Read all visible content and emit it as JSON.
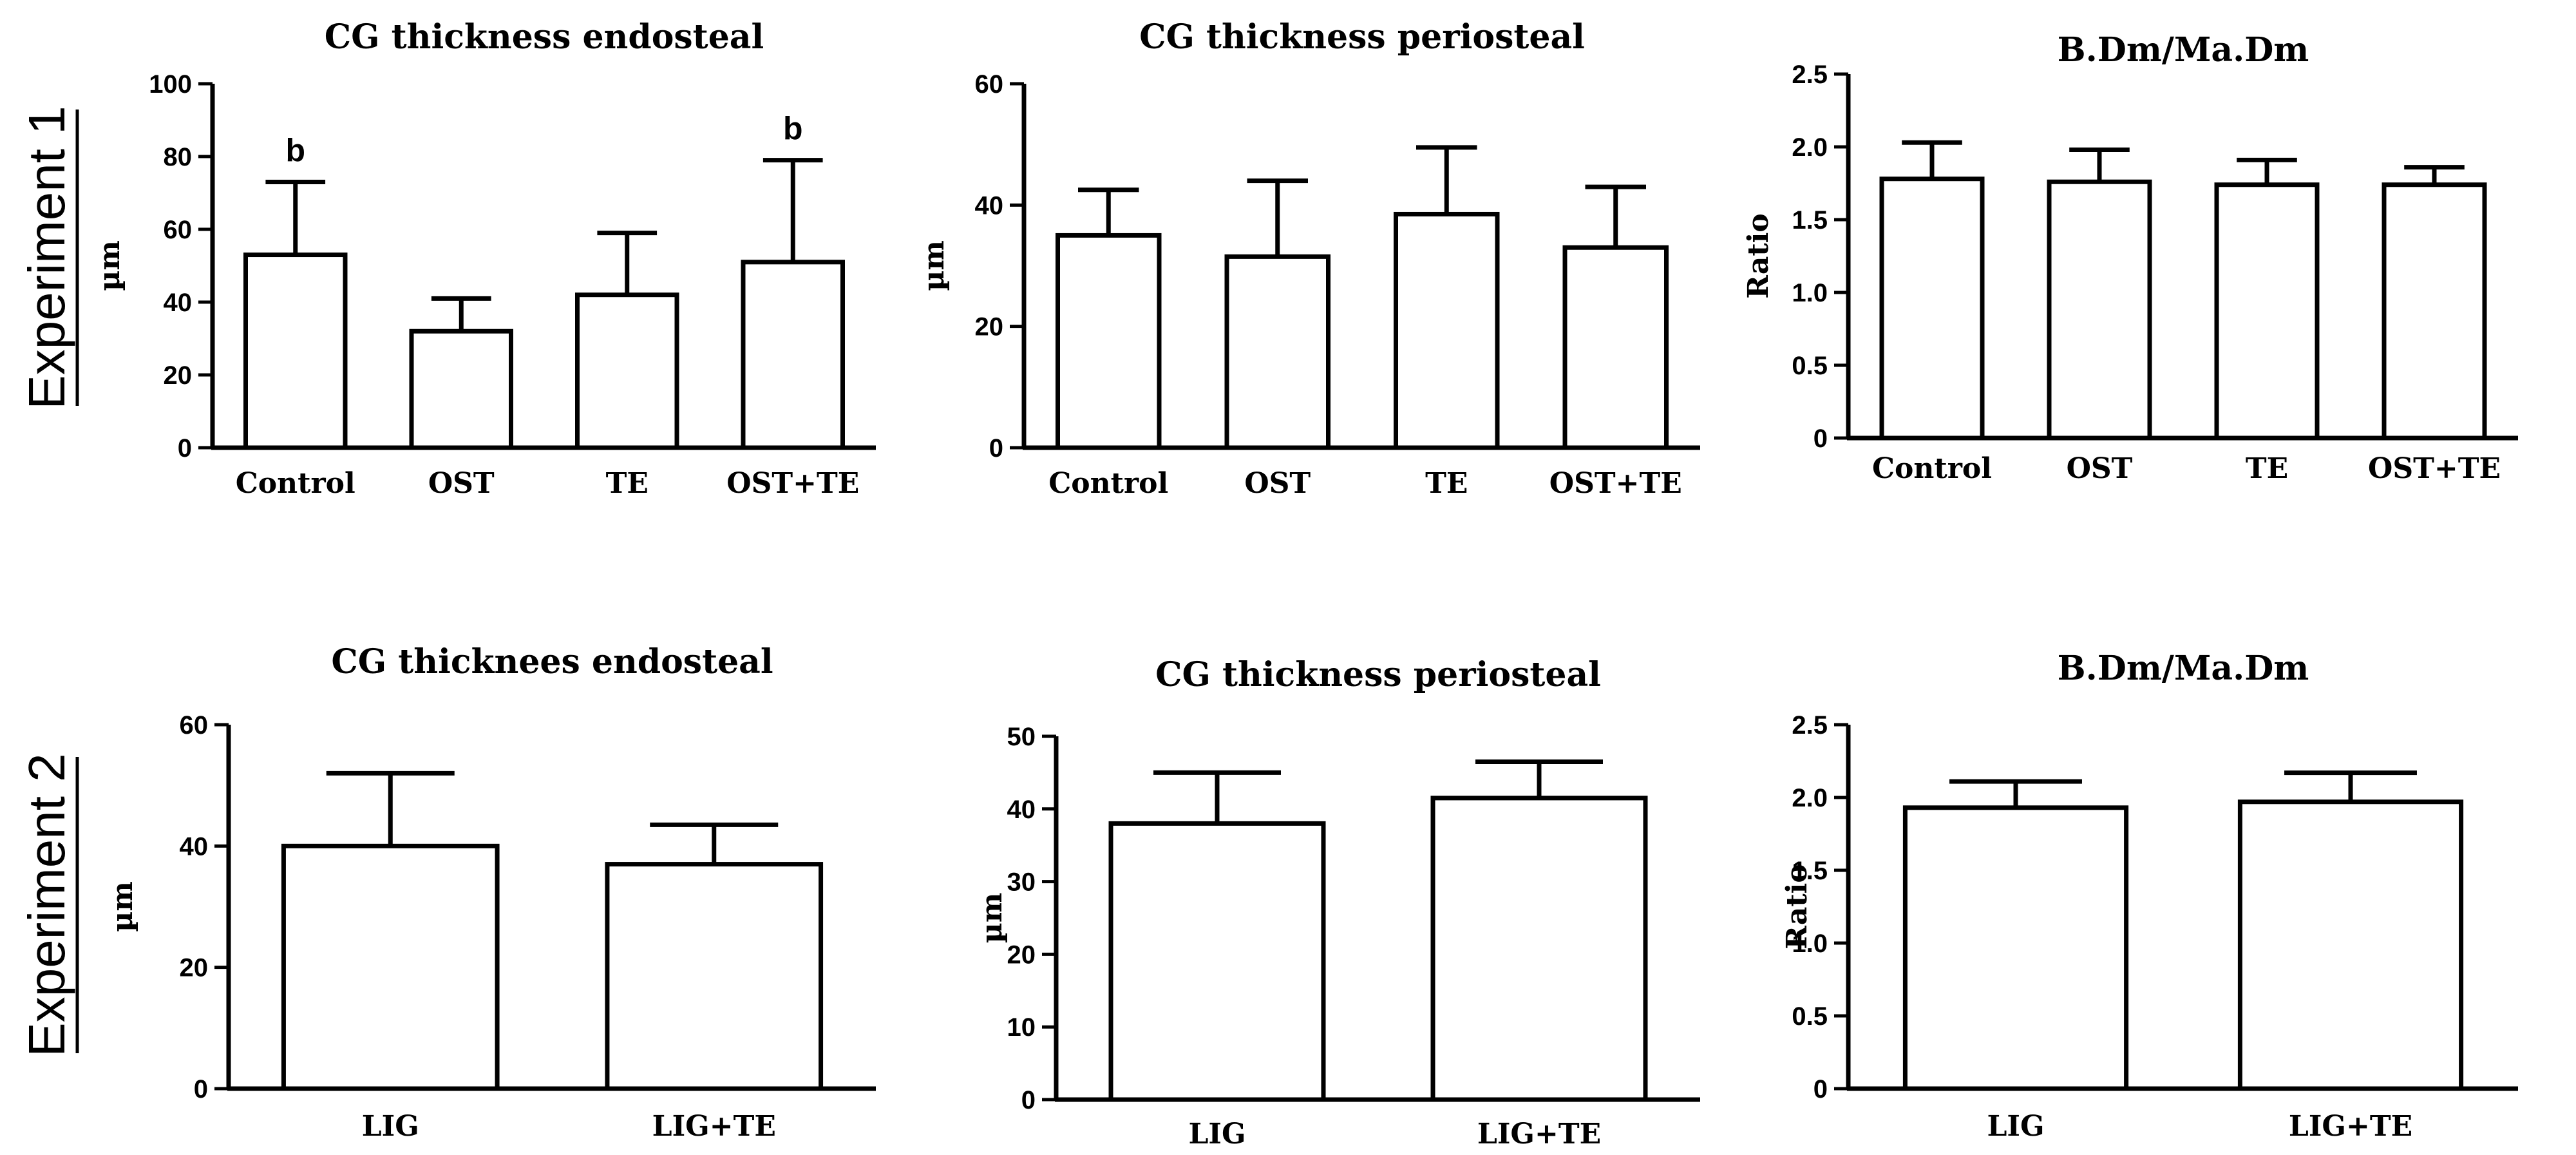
{
  "rows": [
    {
      "label": "Experiment 1"
    },
    {
      "label": "Experiment 2"
    }
  ],
  "chart_data": [
    {
      "type": "bar",
      "title": "CG thickness endosteal",
      "ylabel": "µm",
      "xlabel": "",
      "categories": [
        "Control",
        "OST",
        "TE",
        "OST+TE"
      ],
      "values": [
        53,
        32,
        42,
        51
      ],
      "errors": [
        20,
        9,
        17,
        28
      ],
      "annotations": [
        "b",
        "",
        "",
        "b"
      ],
      "ylim": [
        0,
        100
      ],
      "yticks": [
        "0",
        "20",
        "40",
        "60",
        "80",
        "100"
      ]
    },
    {
      "type": "bar",
      "title": "CG thickness periosteal",
      "ylabel": "µm",
      "xlabel": "",
      "categories": [
        "Control",
        "OST",
        "TE",
        "OST+TE"
      ],
      "values": [
        35,
        31.5,
        38.5,
        33
      ],
      "errors": [
        7.5,
        12.5,
        11,
        10
      ],
      "annotations": [
        "",
        "",
        "",
        ""
      ],
      "ylim": [
        0,
        60
      ],
      "yticks": [
        "0",
        "20",
        "40",
        "60"
      ]
    },
    {
      "type": "bar",
      "title": "B.Dm/Ma.Dm",
      "ylabel": "Ratio",
      "xlabel": "",
      "categories": [
        "Control",
        "OST",
        "TE",
        "OST+TE"
      ],
      "values": [
        1.78,
        1.76,
        1.74,
        1.74
      ],
      "errors": [
        0.25,
        0.22,
        0.17,
        0.12
      ],
      "annotations": [
        "",
        "",
        "",
        ""
      ],
      "ylim": [
        0,
        2.5
      ],
      "yticks": [
        "0",
        "0.5",
        "1.0",
        "1.5",
        "2.0",
        "2.5"
      ]
    },
    {
      "type": "bar",
      "title": "CG thicknees endosteal",
      "ylabel": "µm",
      "xlabel": "",
      "categories": [
        "LIG",
        "LIG+TE"
      ],
      "values": [
        40,
        37
      ],
      "errors": [
        12,
        6.5
      ],
      "annotations": [
        "",
        ""
      ],
      "ylim": [
        0,
        60
      ],
      "yticks": [
        "0",
        "20",
        "40",
        "60"
      ]
    },
    {
      "type": "bar",
      "title": "CG thickness periosteal",
      "ylabel": "µm",
      "xlabel": "",
      "categories": [
        "LIG",
        "LIG+TE"
      ],
      "values": [
        38,
        41.5
      ],
      "errors": [
        7,
        5
      ],
      "annotations": [
        "",
        ""
      ],
      "ylim": [
        0,
        50
      ],
      "yticks": [
        "0",
        "10",
        "20",
        "30",
        "40",
        "50"
      ]
    },
    {
      "type": "bar",
      "title": "B.Dm/Ma.Dm",
      "ylabel": "Ratio",
      "xlabel": "",
      "categories": [
        "LIG",
        "LIG+TE"
      ],
      "values": [
        1.93,
        1.97
      ],
      "errors": [
        0.18,
        0.2
      ],
      "annotations": [
        "",
        ""
      ],
      "ylim": [
        0,
        2.5
      ],
      "yticks": [
        "0",
        "0.5",
        "1.0",
        "1.5",
        "2.0",
        "2.5"
      ]
    }
  ]
}
